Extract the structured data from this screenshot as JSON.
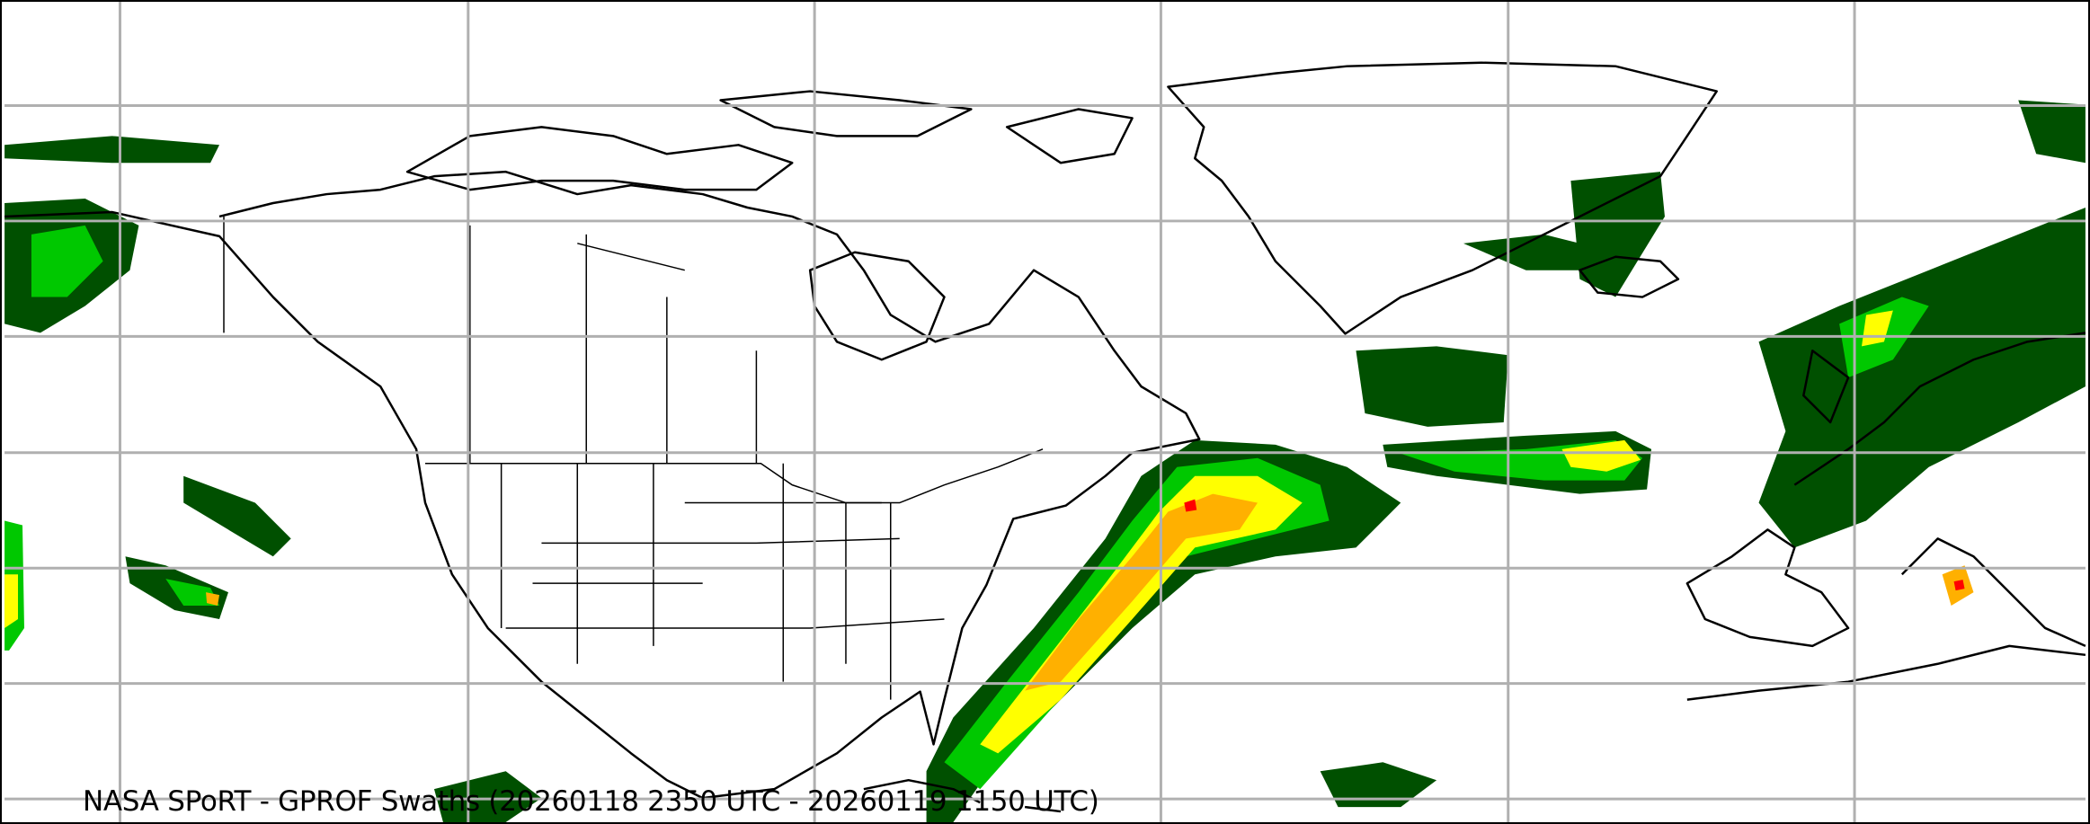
{
  "map": {
    "caption": "NASA SPoRT - GPROF Swaths (20260118 2350 UTC - 20260119 1150 UTC)",
    "layers": [
      "precipitation-swaths",
      "coastlines",
      "state-borders",
      "graticule"
    ],
    "colors": {
      "light_precip": "#005000",
      "moderate_precip": "#00c800",
      "medium_precip": "#a0f000",
      "heavy_precip": "#ffff00",
      "very_heavy_precip": "#ffb000",
      "extreme_precip": "#ff0000",
      "gridline": "#b0b0b0",
      "coastline": "#000000"
    }
  }
}
